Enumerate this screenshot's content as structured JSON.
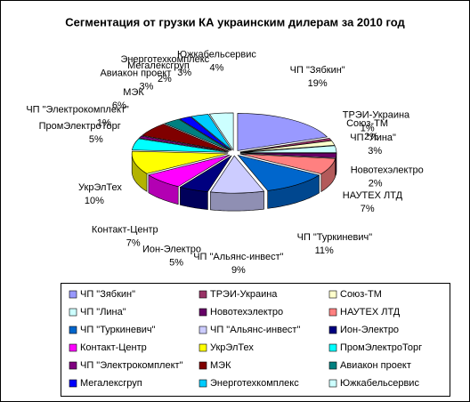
{
  "chart_data": {
    "type": "pie3d",
    "title": "Сегментация от грузки КА украинским дилерам за 2010 год",
    "categories": [
      "ЧП \"Зябкин\"",
      "ТРЭИ-Украина",
      "Союз-ТМ",
      "ЧП \"Лина\"",
      "Новотехэлектро",
      "НАУТЕХ ЛТД",
      "ЧП \"Туркиневич\"",
      "ЧП \"Альянс-инвест\"",
      "Ион-Электро",
      "Контакт-Центр",
      "УкрЭлТех",
      "ПромЭлектроТорг",
      "ЧП \"Электрокомплект\"",
      "МЭК",
      "Авиакон проект",
      "Мегалексгруп",
      "Энерготехкомплекс",
      "Южкабельсервис"
    ],
    "values": [
      19,
      1,
      2,
      3,
      2,
      7,
      11,
      9,
      5,
      7,
      10,
      5,
      1,
      6,
      3,
      2,
      3,
      4
    ],
    "value_labels": [
      "19%",
      "1%",
      "2%",
      "3%",
      "2%",
      "7%",
      "11%",
      "9%",
      "5%",
      "7%",
      "10%",
      "5%",
      "1%",
      "6%",
      "3%",
      "2%",
      "3%",
      "4%"
    ],
    "colors": [
      "#9999ff",
      "#993366",
      "#ffffcc",
      "#ccffff",
      "#660066",
      "#ff8080",
      "#0066cc",
      "#ccccff",
      "#000080",
      "#ff00ff",
      "#ffff00",
      "#00ffff",
      "#800080",
      "#800000",
      "#008080",
      "#0000ff",
      "#00ccff",
      "#ccffff"
    ],
    "legend": "bottom"
  }
}
